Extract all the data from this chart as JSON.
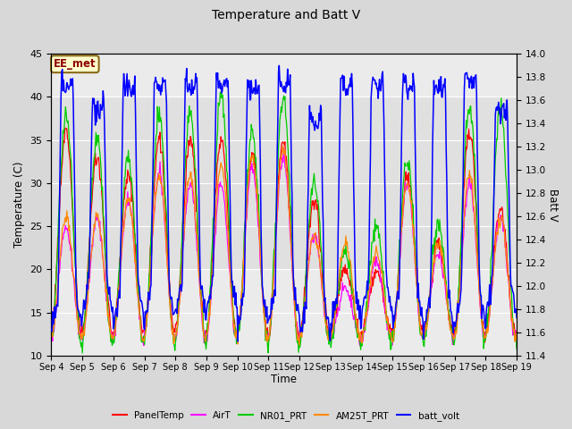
{
  "title": "Temperature and Batt V",
  "xlabel": "Time",
  "ylabel_left": "Temperature (C)",
  "ylabel_right": "Batt V",
  "xlim_labels": [
    "Sep 4",
    "Sep 5",
    "Sep 6",
    "Sep 7",
    "Sep 8",
    "Sep 9",
    "Sep 10",
    "Sep 11",
    "Sep 12",
    "Sep 13",
    "Sep 14",
    "Sep 15",
    "Sep 16",
    "Sep 17",
    "Sep 18",
    "Sep 19"
  ],
  "ylim_left": [
    10,
    45
  ],
  "ylim_right": [
    11.4,
    14.0
  ],
  "yticks_left": [
    10,
    15,
    20,
    25,
    30,
    35,
    40,
    45
  ],
  "yticks_right": [
    11.4,
    11.6,
    11.8,
    12.0,
    12.2,
    12.4,
    12.6,
    12.8,
    13.0,
    13.2,
    13.4,
    13.6,
    13.8,
    14.0
  ],
  "legend_entries": [
    "PanelTemp",
    "AirT",
    "NR01_PRT",
    "AM25T_PRT",
    "batt_volt"
  ],
  "legend_colors": [
    "#ff0000",
    "#ff00ff",
    "#00cc00",
    "#ff8800",
    "#0000ff"
  ],
  "annotation_text": "EE_met",
  "annotation_color": "#8B0000",
  "annotation_bg": "#ffffcc",
  "annotation_border": "#8B6914",
  "bg_color": "#d8d8d8",
  "plot_bg": "#ebebeb",
  "shaded_bg": "#e0e0e0",
  "grid_color": "#ffffff",
  "figsize": [
    6.4,
    4.8
  ],
  "dpi": 100
}
